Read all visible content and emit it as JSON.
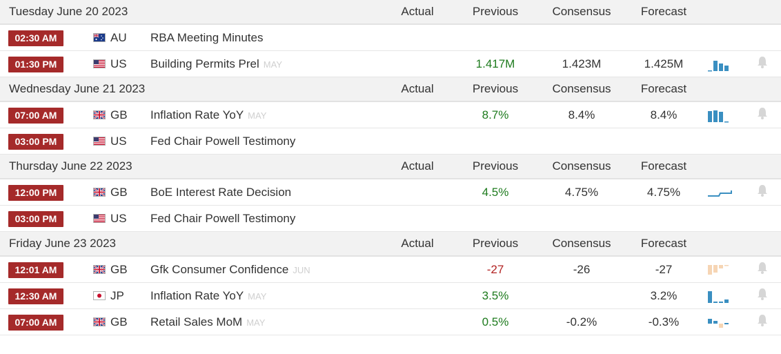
{
  "headers": {
    "actual": "Actual",
    "previous": "Previous",
    "consensus": "Consensus",
    "forecast": "Forecast"
  },
  "groups": [
    {
      "date": "Tuesday June 20 2023",
      "events": [
        {
          "time": "02:30 AM",
          "country": "AU",
          "event": "RBA Meeting Minutes",
          "ref": "",
          "actual": "",
          "previous": "",
          "consensus": "",
          "forecast": ""
        },
        {
          "time": "01:30 PM",
          "country": "US",
          "event": "Building Permits Prel",
          "ref": "MAY",
          "actual": "",
          "previous": "1.417M",
          "consensus": "1.423M",
          "forecast": "1.425M"
        }
      ]
    },
    {
      "date": "Wednesday June 21 2023",
      "events": [
        {
          "time": "07:00 AM",
          "country": "GB",
          "event": "Inflation Rate YoY",
          "ref": "MAY",
          "actual": "",
          "previous": "8.7%",
          "consensus": "8.4%",
          "forecast": "8.4%"
        },
        {
          "time": "03:00 PM",
          "country": "US",
          "event": "Fed Chair Powell Testimony",
          "ref": "",
          "actual": "",
          "previous": "",
          "consensus": "",
          "forecast": ""
        }
      ]
    },
    {
      "date": "Thursday June 22 2023",
      "events": [
        {
          "time": "12:00 PM",
          "country": "GB",
          "event": "BoE Interest Rate Decision",
          "ref": "",
          "actual": "",
          "previous": "4.5%",
          "consensus": "4.75%",
          "forecast": "4.75%"
        },
        {
          "time": "03:00 PM",
          "country": "US",
          "event": "Fed Chair Powell Testimony",
          "ref": "",
          "actual": "",
          "previous": "",
          "consensus": "",
          "forecast": ""
        }
      ]
    },
    {
      "date": "Friday June 23 2023",
      "events": [
        {
          "time": "12:01 AM",
          "country": "GB",
          "event": "Gfk Consumer Confidence",
          "ref": "JUN",
          "actual": "",
          "previous": "-27",
          "consensus": "-26",
          "forecast": "-27"
        },
        {
          "time": "12:30 AM",
          "country": "JP",
          "event": "Inflation Rate YoY",
          "ref": "MAY",
          "actual": "",
          "previous": "3.5%",
          "consensus": "",
          "forecast": "3.2%"
        },
        {
          "time": "07:00 AM",
          "country": "GB",
          "event": "Retail Sales MoM",
          "ref": "MAY",
          "actual": "",
          "previous": "0.5%",
          "consensus": "-0.2%",
          "forecast": "-0.3%"
        }
      ]
    }
  ],
  "icons": {
    "bell": "bell-icon",
    "chart": "sparkline-chart-icon"
  },
  "colors": {
    "time_badge": "#a52a2a",
    "positive": "#1e7b1e",
    "negative": "#b22222",
    "spark_blue": "#3a8fc1",
    "spark_orange": "#f6d5b4"
  }
}
